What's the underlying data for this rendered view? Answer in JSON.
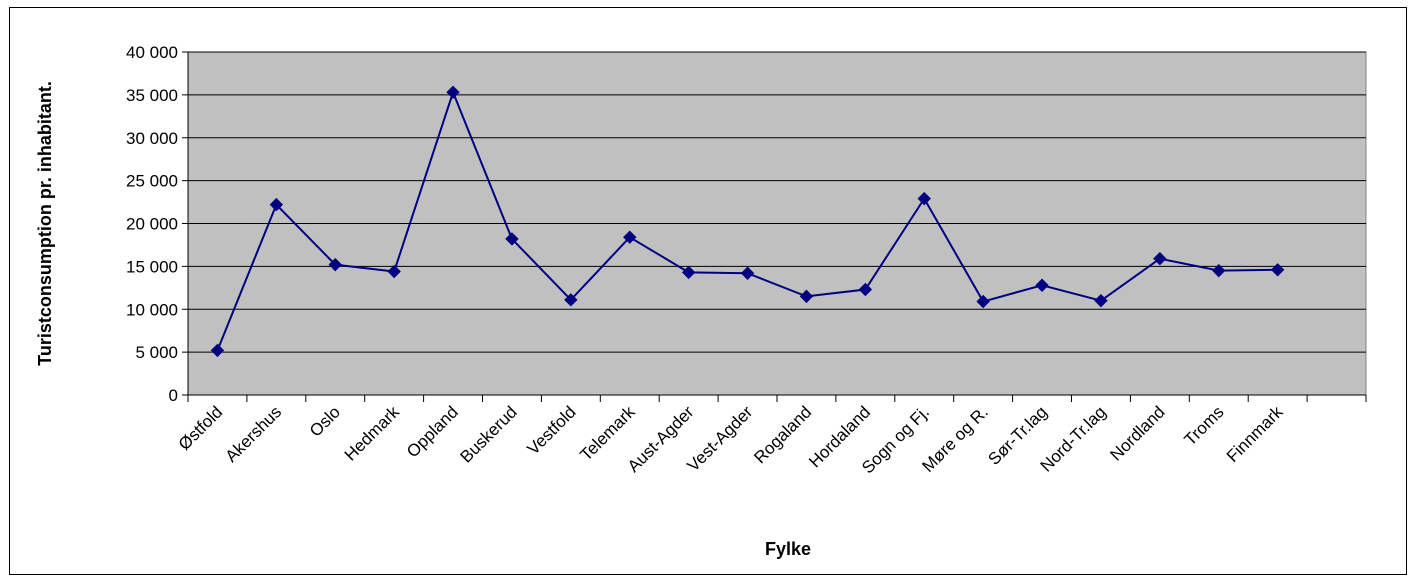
{
  "chart_data": {
    "type": "line",
    "title": "",
    "xlabel": "Fylke",
    "ylabel": "Turistconsumption pr. inhabitant.",
    "ylim": [
      0,
      40000
    ],
    "yticks": [
      "0",
      "5 000",
      "10 000",
      "15 000",
      "20 000",
      "25 000",
      "30 000",
      "35 000",
      "40 000"
    ],
    "categories": [
      "Østfold",
      "Akershus",
      "Oslo",
      "Hedmark",
      "Oppland",
      "Buskerud",
      "Vestfold",
      "Telemark",
      "Aust-Agder",
      "Vest-Agder",
      "Rogaland",
      "Hordaland",
      "Sogn og Fj.",
      "Møre og R.",
      "Sør-Tr.lag",
      "Nord-Tr.lag",
      "Nordland",
      "Troms",
      "Finnmark"
    ],
    "series": [
      {
        "values": [
          5200,
          22200,
          15200,
          14400,
          35300,
          18200,
          11100,
          18400,
          14300,
          14200,
          11500,
          12300,
          22900,
          10900,
          12800,
          11000,
          15900,
          14500,
          14600
        ]
      }
    ],
    "grid": true,
    "legend": "none",
    "colors": {
      "line": "#000080",
      "marker": "#000080",
      "plot_bg": "#c0c0c0",
      "grid": "#000000"
    }
  }
}
